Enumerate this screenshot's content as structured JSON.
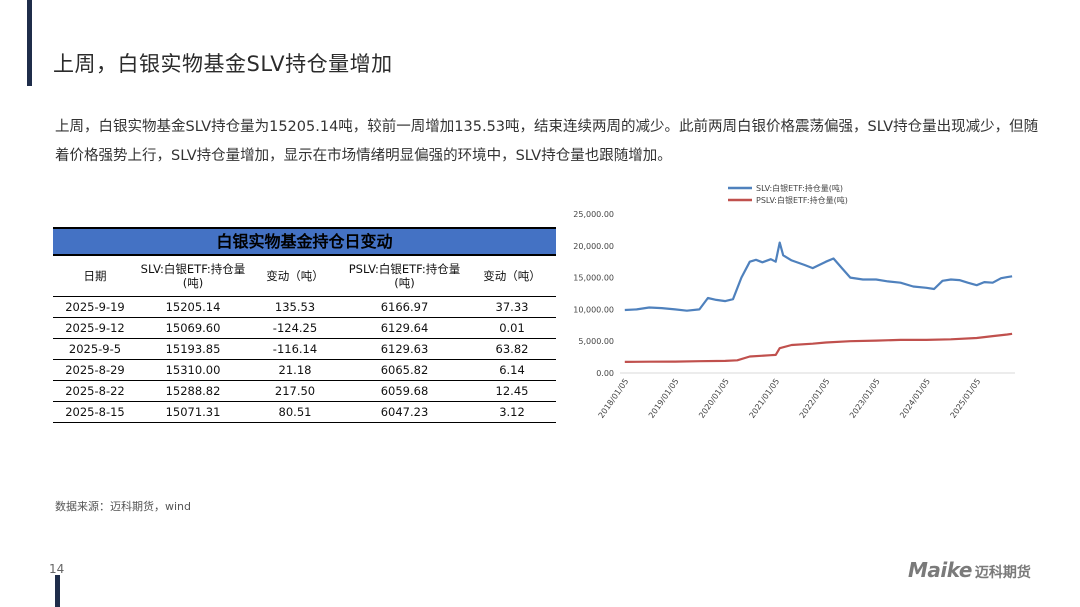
{
  "page": {
    "title": "上周，白银实物基金SLV持仓量增加",
    "description": "上周，白银实物基金SLV持仓量为15205.14吨，较前一周增加135.53吨，结束连续两周的减少。此前两周白银价格震荡偏强，SLV持仓量出现减少，但随着价格强势上行，SLV持仓量增加，显示在市场情绪明显偏强的环境中，SLV持仓量也跟随增加。",
    "source": "数据来源：迈科期货，wind",
    "page_number": "14",
    "logo_word": "Maike",
    "logo_cn": "迈科期货"
  },
  "table": {
    "title": "白银实物基金持仓日变动",
    "headers": [
      "日期",
      "SLV:白银ETF:持仓量(吨)",
      "变动（吨）",
      "PSLV:白银ETF:持仓量(吨)",
      "变动（吨）"
    ],
    "rows": [
      [
        "2025-9-19",
        "15205.14",
        "135.53",
        "6166.97",
        "37.33"
      ],
      [
        "2025-9-12",
        "15069.60",
        "-124.25",
        "6129.64",
        "0.01"
      ],
      [
        "2025-9-5",
        "15193.85",
        "-116.14",
        "6129.63",
        "63.82"
      ],
      [
        "2025-8-29",
        "15310.00",
        "21.18",
        "6065.82",
        "6.14"
      ],
      [
        "2025-8-22",
        "15288.82",
        "217.50",
        "6059.68",
        "12.45"
      ],
      [
        "2025-8-15",
        "15071.31",
        "80.51",
        "6047.23",
        "3.12"
      ]
    ]
  },
  "chart_data": {
    "type": "line",
    "title": "",
    "xlabel": "",
    "ylabel": "",
    "ylim": [
      0,
      25000
    ],
    "yticks": [
      "0.00",
      "5,000.00",
      "10,000.00",
      "15,000.00",
      "20,000.00",
      "25,000.00"
    ],
    "xticks": [
      "2018/01/05",
      "2019/01/05",
      "2020/01/05",
      "2021/01/05",
      "2022/01/05",
      "2023/01/05",
      "2024/01/05",
      "2025/01/05"
    ],
    "legend_position": "top",
    "grid": false,
    "series": [
      {
        "name": "SLV:白银ETF:持仓量(吨)",
        "color": "#4f81bd",
        "points": [
          [
            "2018-01-05",
            9900
          ],
          [
            "2018-04-01",
            10000
          ],
          [
            "2018-07-01",
            10300
          ],
          [
            "2018-10-01",
            10200
          ],
          [
            "2019-01-05",
            10000
          ],
          [
            "2019-04-01",
            9800
          ],
          [
            "2019-07-01",
            10000
          ],
          [
            "2019-09-01",
            11800
          ],
          [
            "2019-11-01",
            11500
          ],
          [
            "2020-01-05",
            11300
          ],
          [
            "2020-03-01",
            11600
          ],
          [
            "2020-05-01",
            15000
          ],
          [
            "2020-07-01",
            17500
          ],
          [
            "2020-08-15",
            17800
          ],
          [
            "2020-10-01",
            17400
          ],
          [
            "2020-12-01",
            17900
          ],
          [
            "2021-01-05",
            17500
          ],
          [
            "2021-02-03",
            20500
          ],
          [
            "2021-03-01",
            18500
          ],
          [
            "2021-05-01",
            17700
          ],
          [
            "2021-08-01",
            17000
          ],
          [
            "2021-10-01",
            16500
          ],
          [
            "2022-01-05",
            17500
          ],
          [
            "2022-03-01",
            18000
          ],
          [
            "2022-05-01",
            16500
          ],
          [
            "2022-07-01",
            15000
          ],
          [
            "2022-10-01",
            14700
          ],
          [
            "2023-01-05",
            14700
          ],
          [
            "2023-04-01",
            14400
          ],
          [
            "2023-07-01",
            14200
          ],
          [
            "2023-10-01",
            13600
          ],
          [
            "2024-01-05",
            13400
          ],
          [
            "2024-03-01",
            13200
          ],
          [
            "2024-05-01",
            14500
          ],
          [
            "2024-07-01",
            14700
          ],
          [
            "2024-09-01",
            14600
          ],
          [
            "2024-11-01",
            14200
          ],
          [
            "2025-01-05",
            13800
          ],
          [
            "2025-03-01",
            14300
          ],
          [
            "2025-05-01",
            14200
          ],
          [
            "2025-07-01",
            14900
          ],
          [
            "2025-08-15",
            15071
          ],
          [
            "2025-09-19",
            15205
          ]
        ]
      },
      {
        "name": "PSLV:白银ETF:持仓量(吨)",
        "color": "#c0504d",
        "points": [
          [
            "2018-01-05",
            1750
          ],
          [
            "2018-07-01",
            1780
          ],
          [
            "2019-01-05",
            1800
          ],
          [
            "2019-07-01",
            1850
          ],
          [
            "2020-01-05",
            1900
          ],
          [
            "2020-04-01",
            2000
          ],
          [
            "2020-07-01",
            2600
          ],
          [
            "2020-12-01",
            2800
          ],
          [
            "2021-01-05",
            2850
          ],
          [
            "2021-02-03",
            3900
          ],
          [
            "2021-05-01",
            4400
          ],
          [
            "2021-10-01",
            4600
          ],
          [
            "2022-01-05",
            4800
          ],
          [
            "2022-07-01",
            5000
          ],
          [
            "2023-01-05",
            5100
          ],
          [
            "2023-07-01",
            5200
          ],
          [
            "2024-01-05",
            5200
          ],
          [
            "2024-07-01",
            5300
          ],
          [
            "2025-01-05",
            5500
          ],
          [
            "2025-05-01",
            5800
          ],
          [
            "2025-08-15",
            6047
          ],
          [
            "2025-09-19",
            6167
          ]
        ]
      }
    ]
  }
}
